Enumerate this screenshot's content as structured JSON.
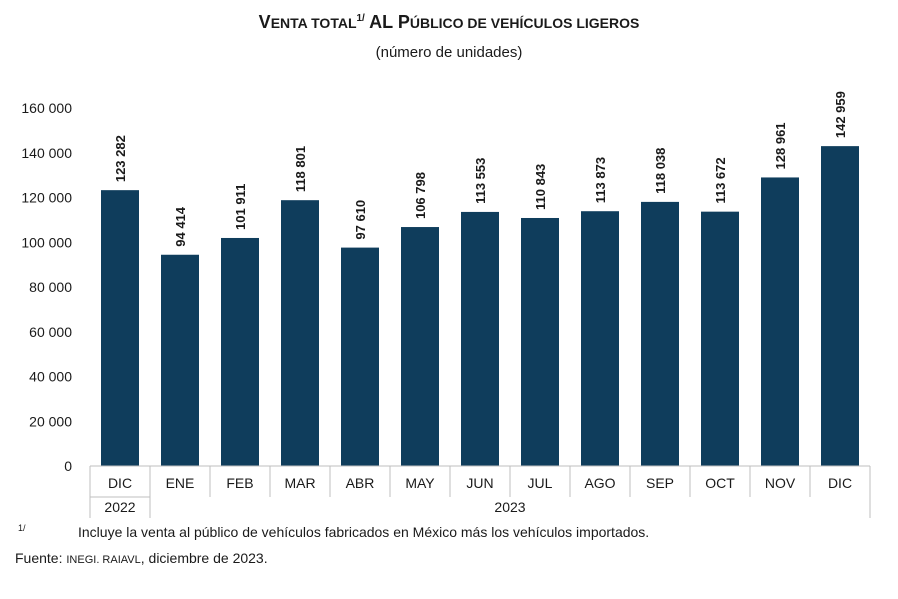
{
  "title": {
    "lead_letter": "V",
    "lead_rest": "ENTA TOTAL",
    "superscript": "1/",
    "tail_lead": " AL P",
    "tail_rest": "ÚBLICO DE VEHÍCULOS LIGEROS"
  },
  "subtitle": "(número de unidades)",
  "footnote": {
    "marker": "1/",
    "text": "Incluye la venta al público de vehículos fabricados en México más los vehículos importados."
  },
  "source": {
    "label": "Fuente: ",
    "org": "INEGI. RAIAVL",
    "date": ", diciembre de 2023."
  },
  "colors": {
    "bar": "#0f3d5c",
    "axis": "#bfbfbf",
    "text": "#1a1a1a"
  },
  "chart_data": {
    "type": "bar",
    "categories": [
      "DIC",
      "ENE",
      "FEB",
      "MAR",
      "ABR",
      "MAY",
      "JUN",
      "JUL",
      "AGO",
      "SEP",
      "OCT",
      "NOV",
      "DIC"
    ],
    "year_groups": [
      {
        "label": "2022",
        "start": 0,
        "end": 0
      },
      {
        "label": "2023",
        "start": 1,
        "end": 12
      }
    ],
    "values": [
      123282,
      94414,
      101911,
      118801,
      97610,
      106798,
      113553,
      110843,
      113873,
      118038,
      113672,
      128961,
      142959
    ],
    "value_labels": [
      "123 282",
      "94 414",
      "101 911",
      "118 801",
      "97 610",
      "106 798",
      "113 553",
      "110 843",
      "113 873",
      "118 038",
      "113 672",
      "128 961",
      "142 959"
    ],
    "yticks": [
      0,
      20000,
      40000,
      60000,
      80000,
      100000,
      120000,
      140000,
      160000
    ],
    "ytick_labels": [
      "0",
      "20 000",
      "40 000",
      "60 000",
      "80 000",
      "100 000",
      "120 000",
      "140 000",
      "160 000"
    ],
    "ylim": [
      0,
      160000
    ],
    "grid": false,
    "legend": "none"
  }
}
